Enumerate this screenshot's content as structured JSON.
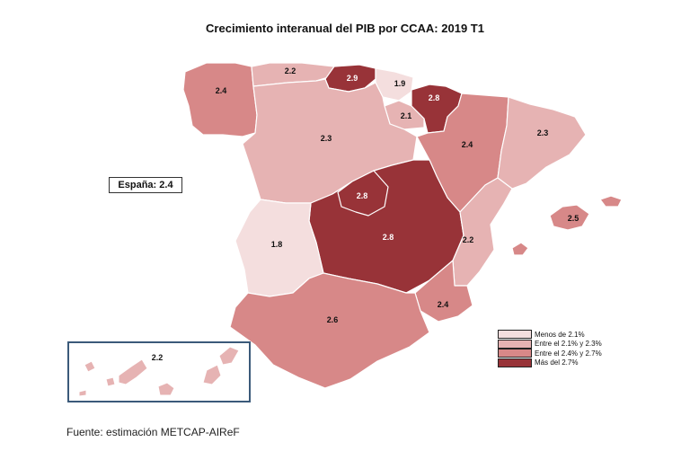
{
  "title": "Crecimiento interanual del PIB por CCAA: 2019 T1",
  "spain_total": "España: 2.4",
  "source": "Fuente: estimación METCAP-AIReF",
  "colors": {
    "low": "#f4dede",
    "mid_low": "#e6b3b3",
    "mid_high": "#d78888",
    "high": "#983338",
    "border": "#ffffff"
  },
  "legend": [
    {
      "label": "Menos de 2.1%",
      "color": "#f4dede"
    },
    {
      "label": "Entre el 2.1% y 2.3%",
      "color": "#e6b3b3"
    },
    {
      "label": "Entre el 2.4% y 2.7%",
      "color": "#d78888"
    },
    {
      "label": "Más del 2.7%",
      "color": "#983338"
    }
  ],
  "regions": [
    {
      "name": "Galicia",
      "value": "2.4"
    },
    {
      "name": "Asturias",
      "value": "2.2"
    },
    {
      "name": "Cantabria",
      "value": "2.9"
    },
    {
      "name": "País Vasco",
      "value": "1.9"
    },
    {
      "name": "Navarra",
      "value": "2.8"
    },
    {
      "name": "La Rioja",
      "value": "2.1"
    },
    {
      "name": "Castilla y León",
      "value": "2.3"
    },
    {
      "name": "Aragón",
      "value": "2.4"
    },
    {
      "name": "Cataluña",
      "value": "2.3"
    },
    {
      "name": "Madrid",
      "value": "2.8"
    },
    {
      "name": "Castilla-La Mancha",
      "value": "2.8"
    },
    {
      "name": "Extremadura",
      "value": "1.8"
    },
    {
      "name": "Comunidad Valenciana",
      "value": "2.2"
    },
    {
      "name": "Baleares",
      "value": "2.5"
    },
    {
      "name": "Murcia",
      "value": "2.4"
    },
    {
      "name": "Andalucía",
      "value": "2.6"
    },
    {
      "name": "Canarias",
      "value": "2.2"
    }
  ]
}
